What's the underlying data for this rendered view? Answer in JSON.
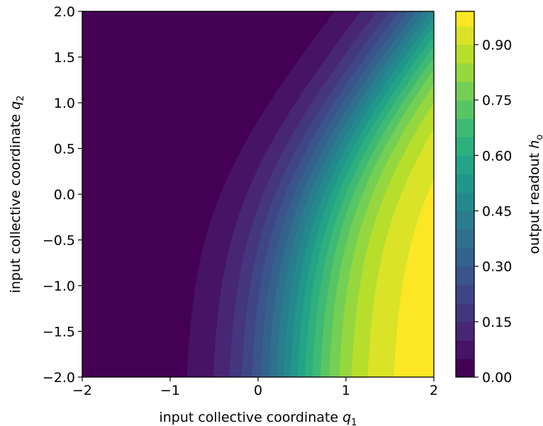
{
  "chart_data": {
    "type": "contourf",
    "title": "",
    "xlabel": "input collective coordinate",
    "xlabel_var": "q",
    "xlabel_sub": "1",
    "ylabel": "input collective coordinate",
    "ylabel_var": "q",
    "ylabel_sub": "2",
    "xlim": [
      -2,
      2
    ],
    "ylim": [
      -2,
      2
    ],
    "x_ticks": [
      -2,
      -1,
      0,
      1,
      2
    ],
    "x_tick_labels": [
      "−2",
      "−1",
      "0",
      "1",
      "2"
    ],
    "y_ticks": [
      -2.0,
      -1.5,
      -1.0,
      -0.5,
      0.0,
      0.5,
      1.0,
      1.5,
      2.0
    ],
    "y_tick_labels": [
      "−2.0",
      "−1.5",
      "−1.0",
      "−0.5",
      "0.0",
      "0.5",
      "1.0",
      "1.5",
      "2.0"
    ],
    "field": "h_o = sigmoid(2.5*q1 - 1.5*ln(1+exp(1.4*q2)) - 0.84)",
    "levels": [
      0.0,
      0.05,
      0.1,
      0.15,
      0.2,
      0.25,
      0.3,
      0.35,
      0.4,
      0.45,
      0.5,
      0.55,
      0.6,
      0.65,
      0.7,
      0.75,
      0.8,
      0.85,
      0.9,
      0.95,
      1.0
    ],
    "colormap": "viridis",
    "colorbar": {
      "label": "output readout",
      "label_var": "h",
      "label_sub": "o",
      "range": [
        0.0,
        0.99
      ],
      "ticks": [
        0.0,
        0.15,
        0.3,
        0.45,
        0.6,
        0.75,
        0.9
      ],
      "tick_labels": [
        "0.00",
        "0.15",
        "0.30",
        "0.45",
        "0.60",
        "0.75",
        "0.90"
      ]
    },
    "grid": false,
    "legend": "none"
  }
}
